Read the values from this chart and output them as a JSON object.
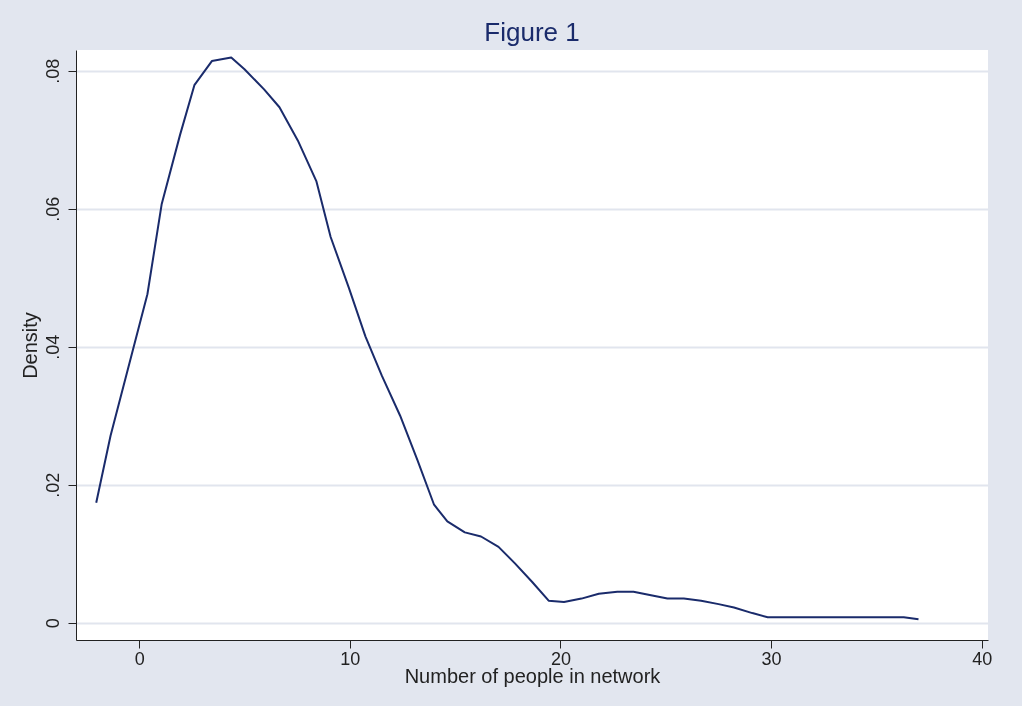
{
  "chart_data": {
    "type": "line",
    "title": "Figure 1",
    "xlabel": "Number of people in network",
    "ylabel": "Density",
    "x": [
      -2.04,
      -1.36,
      0.39,
      1.07,
      1.94,
      2.62,
      3.45,
      4.37,
      5.0,
      5.93,
      6.66,
      7.53,
      8.41,
      9.09,
      9.96,
      10.74,
      11.52,
      12.39,
      13.22,
      14.0,
      14.63,
      15.46,
      16.23,
      17.06,
      17.84,
      18.66,
      19.44,
      20.17,
      21.0,
      21.82,
      22.7,
      23.47,
      24.3,
      25.08,
      25.86,
      26.68,
      27.51,
      28.24,
      29.11,
      29.84,
      36.3,
      37.0
    ],
    "series": [
      {
        "color": "#1a2b6b",
        "values": [
          0.0174,
          0.0271,
          0.0476,
          0.0607,
          0.0707,
          0.0779,
          0.0814,
          0.0819,
          0.0802,
          0.0773,
          0.0747,
          0.0699,
          0.064,
          0.0559,
          0.0485,
          0.0415,
          0.0358,
          0.03,
          0.0235,
          0.0171,
          0.0147,
          0.0131,
          0.0125,
          0.011,
          0.0086,
          0.0059,
          0.0032,
          0.003,
          0.0035,
          0.0042,
          0.0045,
          0.0045,
          0.004,
          0.0035,
          0.0035,
          0.0032,
          0.0027,
          0.0022,
          0.0014,
          0.0008,
          0.0008,
          0.0005
        ]
      }
    ],
    "xlim": [
      -3,
      40.3
    ],
    "ylim": [
      -0.0025,
      0.083
    ],
    "xticks": [
      0,
      10,
      20,
      30,
      40
    ],
    "yticks": [
      {
        "value": 0,
        "label": "0"
      },
      {
        "value": 0.02,
        "label": ".02"
      },
      {
        "value": 0.04,
        "label": ".04"
      },
      {
        "value": 0.06,
        "label": ".06"
      },
      {
        "value": 0.08,
        "label": ".08"
      }
    ],
    "grid": "y",
    "marker": "none",
    "line_style": "solid"
  }
}
